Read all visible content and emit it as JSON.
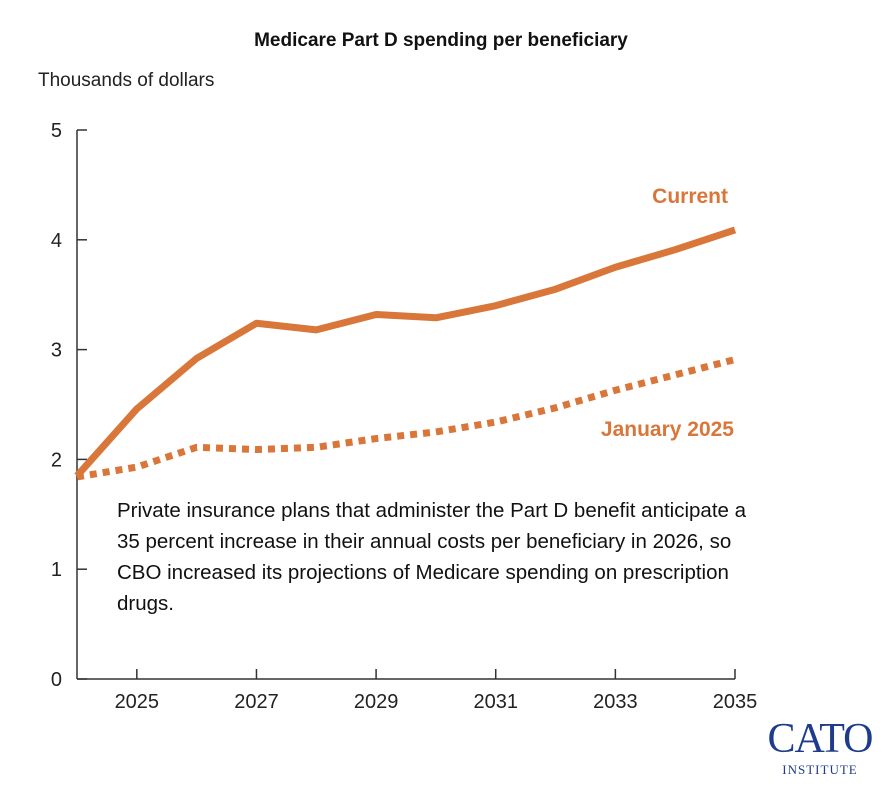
{
  "chart_data": {
    "type": "line",
    "title": "Medicare Part D spending per beneficiary",
    "ylabel": "Thousands of dollars",
    "xlabel": "",
    "x": [
      2024,
      2025,
      2026,
      2027,
      2028,
      2029,
      2030,
      2031,
      2032,
      2033,
      2034,
      2035
    ],
    "xticks": [
      "2025",
      "2027",
      "2029",
      "2031",
      "2033",
      "2035"
    ],
    "yticks": [
      "0",
      "1",
      "2",
      "3",
      "4",
      "5"
    ],
    "xlim": [
      2024,
      2035
    ],
    "ylim": [
      0,
      5
    ],
    "grid": false,
    "series": [
      {
        "name": "Current",
        "style": "solid",
        "color": "#d9763a",
        "values": [
          1.85,
          2.46,
          2.92,
          3.24,
          3.18,
          3.32,
          3.29,
          3.4,
          3.55,
          3.75,
          3.91,
          4.09
        ]
      },
      {
        "name": "January 2025",
        "style": "dotted",
        "color": "#d9763a",
        "values": [
          1.84,
          1.93,
          2.11,
          2.09,
          2.11,
          2.19,
          2.25,
          2.34,
          2.47,
          2.63,
          2.77,
          2.91
        ]
      }
    ],
    "annotation": "Private insurance plans that administer the Part D benefit anticipate a 35 percent increase in their annual costs per beneficiary in 2026, so CBO increased its projections of Medicare spending on prescription drugs."
  },
  "logo": {
    "text": "CATO",
    "subtext": "INSTITUTE",
    "color": "#1f3c8c"
  }
}
